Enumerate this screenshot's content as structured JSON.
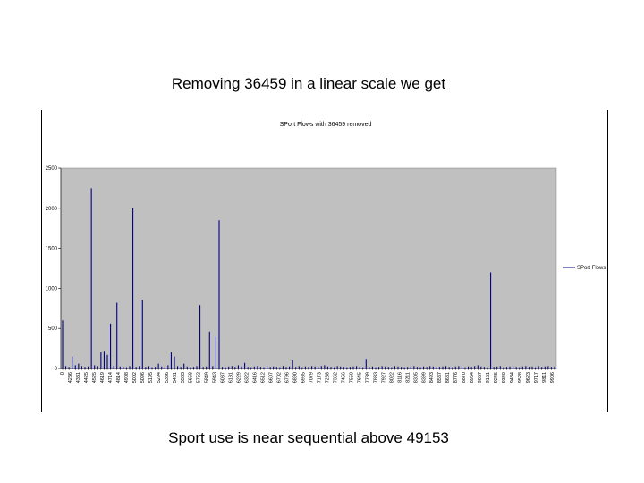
{
  "slide": {
    "title": "Removing 36459 in a linear scale we get",
    "caption": "Sport use is near sequential above 49153"
  },
  "colors": {
    "plot_background": "#c0c0c0",
    "series": "#000080",
    "slide_background": "#ffffff"
  },
  "chart_data": {
    "type": "bar",
    "title": "SPort Flows with 36459 removed",
    "xlabel": "",
    "ylabel": "",
    "ylim": [
      0,
      2500
    ],
    "yticks": [
      0,
      500,
      1000,
      1500,
      2000,
      2500
    ],
    "grid": false,
    "legend": {
      "position": "right",
      "entries": [
        "SPort Flows"
      ]
    },
    "x_tick_labels": [
      "0",
      "4236",
      "4331",
      "4425",
      "4525",
      "4619",
      "4714",
      "4814",
      "4908",
      "5002",
      "5096",
      "5195",
      "5294",
      "5386",
      "5481",
      "5563",
      "5658",
      "5752",
      "5849",
      "5943",
      "6037",
      "6131",
      "6229",
      "6322",
      "6416",
      "6512",
      "6607",
      "6702",
      "6796",
      "6890",
      "6985",
      "7079",
      "7173",
      "7268",
      "7362",
      "7456",
      "7550",
      "7645",
      "7739",
      "7833",
      "7927",
      "8022",
      "8116",
      "8211",
      "8305",
      "8399",
      "8493",
      "8587",
      "8681",
      "8776",
      "8870",
      "8964",
      "9057",
      "9151",
      "9245",
      "9340",
      "9434",
      "9528",
      "9623",
      "9717",
      "9811",
      "9906"
    ],
    "series": [
      {
        "name": "SPort Flows",
        "values": [
          600,
          30,
          20,
          150,
          40,
          60,
          30,
          20,
          25,
          2250,
          40,
          30,
          200,
          220,
          170,
          560,
          30,
          820,
          25,
          20,
          15,
          30,
          2000,
          20,
          30,
          860,
          20,
          30,
          15,
          20,
          60,
          25,
          15,
          40,
          200,
          150,
          30,
          20,
          60,
          25,
          15,
          20,
          30,
          790,
          20,
          25,
          460,
          30,
          400,
          1850,
          20,
          15,
          25,
          30,
          20,
          40,
          25,
          70,
          20,
          15,
          25,
          30,
          20,
          15,
          30,
          20,
          25,
          20,
          15,
          30,
          20,
          25,
          100,
          20,
          30,
          15,
          25,
          20,
          30,
          25,
          20,
          30,
          40,
          25,
          20,
          15,
          30,
          25,
          20,
          15,
          20,
          25,
          30,
          20,
          15,
          120,
          20,
          25,
          15,
          20,
          30,
          25,
          20,
          15,
          30,
          25,
          20,
          15,
          20,
          25,
          30,
          20,
          15,
          25,
          20,
          30,
          25,
          15,
          20,
          25,
          30,
          20,
          15,
          25,
          30,
          20,
          15,
          25,
          20,
          30,
          40,
          25,
          20,
          15,
          1200,
          20,
          25,
          30,
          15,
          20,
          25,
          30,
          20,
          15,
          25,
          30,
          20,
          25,
          15,
          30,
          20,
          25,
          30,
          20,
          25
        ]
      }
    ]
  }
}
